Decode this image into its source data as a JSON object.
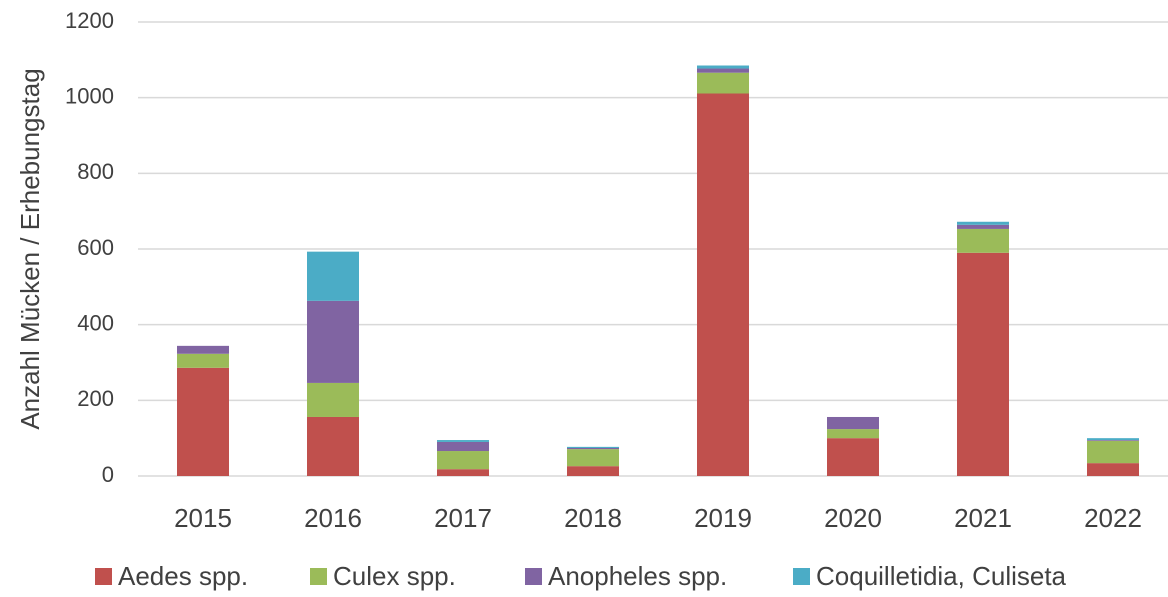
{
  "chart_data": {
    "type": "stacked_bar",
    "y_label": "Anzahl Mücken / Erhebungstag",
    "categories": [
      "2015",
      "2016",
      "2017",
      "2018",
      "2019",
      "2020",
      "2021",
      "2022"
    ],
    "series": [
      {
        "name": "Aedes spp.",
        "color": "#c0504d",
        "values": [
          286,
          156,
          18,
          26,
          1011,
          100,
          590,
          34
        ]
      },
      {
        "name": "Culex spp.",
        "color": "#9bbb59",
        "values": [
          37,
          90,
          48,
          45,
          55,
          24,
          63,
          59
        ]
      },
      {
        "name": "Anopheles spp.",
        "color": "#8064a2",
        "values": [
          21,
          217,
          24,
          3,
          11,
          32,
          11,
          2
        ]
      },
      {
        "name": "Coquilletidia, Culiseta",
        "color": "#4bacc6",
        "values": [
          0,
          130,
          5,
          3,
          8,
          0,
          8,
          5
        ]
      }
    ],
    "ylim": [
      0,
      1200
    ],
    "yticks": [
      0,
      200,
      400,
      600,
      800,
      1000,
      1200
    ],
    "grid": true,
    "legend": "bottom"
  }
}
